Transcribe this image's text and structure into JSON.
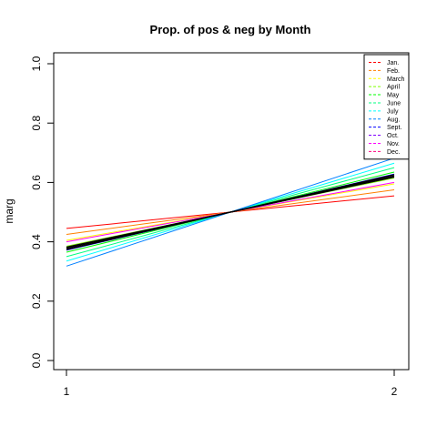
{
  "chart_data": {
    "type": "line",
    "title": "Prop. of pos & neg by Month",
    "ylabel": "marg",
    "xlabel": "",
    "x": [
      1,
      2
    ],
    "xticks": [
      "1",
      "2"
    ],
    "ylim": [
      0,
      1
    ],
    "yticks": [
      "0.0",
      "0.2",
      "0.4",
      "0.6",
      "0.8",
      "1.0"
    ],
    "legend_position": "top-right",
    "series": [
      {
        "name": "Jan.",
        "color": "#FF0000",
        "values": [
          0.445,
          0.555
        ]
      },
      {
        "name": "Feb.",
        "color": "#FF8000",
        "values": [
          0.425,
          0.575
        ]
      },
      {
        "name": "March",
        "color": "#FFFF00",
        "values": [
          0.405,
          0.595
        ]
      },
      {
        "name": "April",
        "color": "#80FF00",
        "values": [
          0.385,
          0.615
        ]
      },
      {
        "name": "May",
        "color": "#00FF00",
        "values": [
          0.365,
          0.635
        ]
      },
      {
        "name": "June",
        "color": "#00FF80",
        "values": [
          0.35,
          0.65
        ]
      },
      {
        "name": "July",
        "color": "#00FFFF",
        "values": [
          0.335,
          0.665
        ]
      },
      {
        "name": "Aug.",
        "color": "#0080FF",
        "values": [
          0.318,
          0.682
        ]
      },
      {
        "name": "Sept.",
        "color": "#0000FF",
        "values": [
          0.372,
          0.628
        ]
      },
      {
        "name": "Oct.",
        "color": "#8000FF",
        "values": [
          0.382,
          0.618
        ]
      },
      {
        "name": "Nov.",
        "color": "#FF00FF",
        "values": [
          0.4,
          0.6
        ]
      },
      {
        "name": "Dec.",
        "color": "#FF0080",
        "values": [
          0.378,
          0.622
        ]
      }
    ],
    "reference_lines": [
      {
        "color": "#000000",
        "values": [
          0.378,
          0.622
        ]
      },
      {
        "color": "#000000",
        "values": [
          0.382,
          0.618
        ]
      },
      {
        "color": "#000000",
        "values": [
          0.374,
          0.626
        ]
      }
    ]
  }
}
